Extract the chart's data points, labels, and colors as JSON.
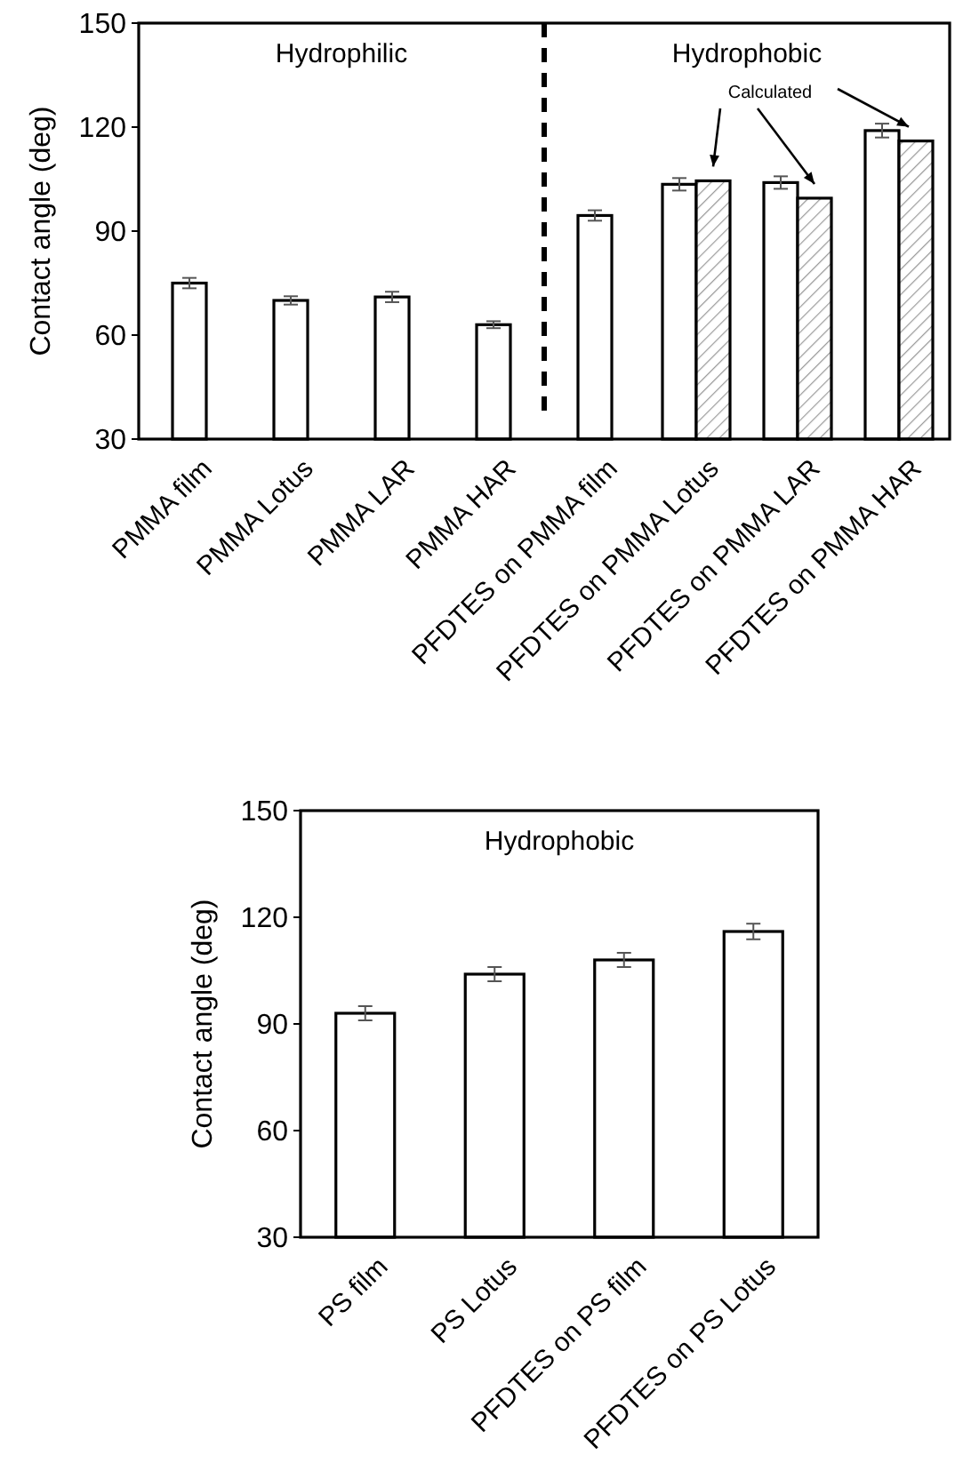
{
  "chart_data": [
    {
      "type": "bar",
      "ylabel": "Contact angle (deg)",
      "categories": [
        "PMMA film",
        "PMMA Lotus",
        "PMMA LAR",
        "PMMA HAR",
        "PFDTES on PMMA film",
        "PFDTES on PMMA Lotus",
        "PFDTES on PMMA LAR",
        "PFDTES on PMMA HAR"
      ],
      "series": [
        {
          "color": "#ffffff",
          "values": [
            75,
            70,
            71,
            63,
            94.5,
            103.5,
            104,
            119
          ],
          "errors": [
            1.5,
            1.2,
            1.5,
            1,
            1.5,
            1.8,
            1.8,
            2
          ]
        },
        {
          "name": "Calculated",
          "color": "#000000",
          "values": [
            null,
            null,
            null,
            null,
            null,
            104.5,
            99.5,
            116
          ]
        }
      ],
      "ylim": [
        30,
        150
      ],
      "yticks": [
        30,
        60,
        90,
        120,
        150
      ],
      "annotations": [
        "Hydrophilic",
        "Hydrophobic"
      ]
    },
    {
      "type": "bar",
      "ylabel": "Contact angle (deg)",
      "categories": [
        "PS film",
        "PS Lotus",
        "PFDTES on PS film",
        "PFDTES on PS Lotus"
      ],
      "series": [
        {
          "color": "#ffffff",
          "values": [
            93,
            104,
            108,
            116
          ],
          "errors": [
            2,
            2,
            2,
            2.2
          ]
        }
      ],
      "ylim": [
        30,
        150
      ],
      "yticks": [
        30,
        60,
        90,
        120,
        150
      ],
      "annotations": [
        "Hydrophobic"
      ]
    }
  ]
}
